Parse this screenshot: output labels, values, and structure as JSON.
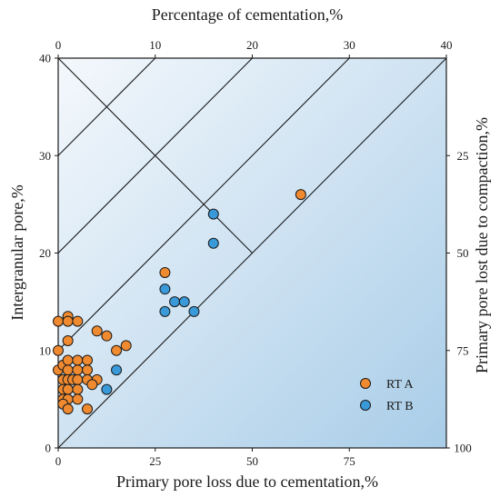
{
  "chart_data": {
    "type": "scatter",
    "title": "",
    "top_axis": {
      "label": "Percentage of cementation,%",
      "ticks": [
        "0",
        "10",
        "20",
        "30",
        "40"
      ],
      "lim": [
        0,
        40
      ]
    },
    "left_axis": {
      "label": "Intergranular pore,%",
      "ticks": [
        "0",
        "10",
        "20",
        "30",
        "40"
      ],
      "lim": [
        0,
        40
      ]
    },
    "bottom_axis": {
      "label": "Primary pore loss due to cementation,%",
      "ticks": [
        "0",
        "25",
        "50",
        "75"
      ],
      "lim": [
        0,
        100
      ]
    },
    "right_axis": {
      "label": "Primary pore lost due to compaction,%",
      "ticks": [
        "25",
        "50",
        "75",
        "100"
      ],
      "lim": [
        0,
        100
      ]
    },
    "grid": false,
    "legend_position": "bottom-right",
    "colors": {
      "background_light": "#f4f8fc",
      "background_dark": "#a9cde8",
      "line": "#1a1a1a"
    },
    "series": [
      {
        "name": "RT A",
        "color": "#f08a30",
        "points": [
          [
            0,
            13
          ],
          [
            1,
            13.5
          ],
          [
            1,
            13
          ],
          [
            2,
            13
          ],
          [
            0,
            10
          ],
          [
            1,
            11
          ],
          [
            0,
            8
          ],
          [
            0.5,
            8.5
          ],
          [
            1,
            8
          ],
          [
            1,
            9
          ],
          [
            2,
            9
          ],
          [
            2,
            8
          ],
          [
            3,
            9
          ],
          [
            3,
            8
          ],
          [
            0.5,
            7
          ],
          [
            1,
            7
          ],
          [
            1.5,
            7
          ],
          [
            2,
            7
          ],
          [
            3,
            7
          ],
          [
            4,
            7
          ],
          [
            0.5,
            6
          ],
          [
            1,
            6
          ],
          [
            2,
            6
          ],
          [
            3.5,
            6.5
          ],
          [
            0.5,
            5
          ],
          [
            1,
            5
          ],
          [
            2,
            5
          ],
          [
            0.5,
            4.5
          ],
          [
            1,
            4
          ],
          [
            3,
            4
          ],
          [
            4,
            12
          ],
          [
            5,
            11.5
          ],
          [
            6,
            10
          ],
          [
            7,
            10.5
          ],
          [
            11,
            18
          ],
          [
            25,
            26
          ]
        ]
      },
      {
        "name": "RT B",
        "color": "#3a9ad9",
        "points": [
          [
            5,
            6
          ],
          [
            6,
            8
          ],
          [
            11,
            14
          ],
          [
            11,
            16.3
          ],
          [
            12,
            15
          ],
          [
            13,
            15
          ],
          [
            14,
            14
          ],
          [
            16,
            21
          ],
          [
            16,
            24
          ]
        ]
      }
    ]
  }
}
